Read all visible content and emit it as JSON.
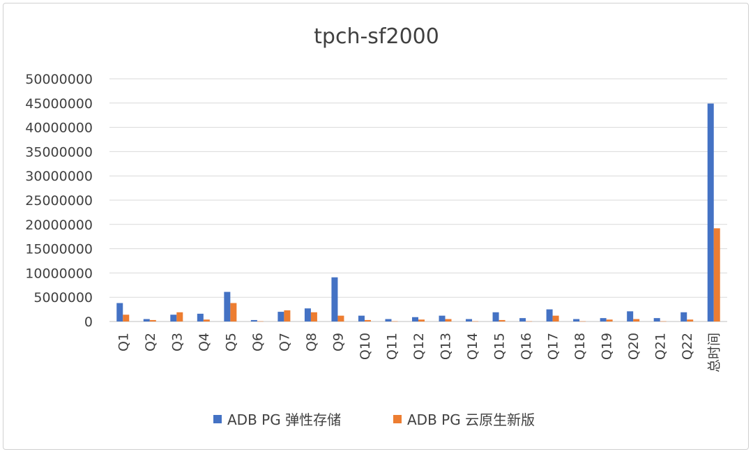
{
  "chart_data": {
    "type": "bar",
    "title": "tpch-sf2000",
    "xlabel": "",
    "ylabel": "",
    "ylim": [
      0,
      50000000
    ],
    "yticks": [
      0,
      5000000,
      10000000,
      15000000,
      20000000,
      25000000,
      30000000,
      35000000,
      40000000,
      45000000,
      50000000
    ],
    "grid": true,
    "legend_position": "bottom",
    "categories": [
      "Q1",
      "Q2",
      "Q3",
      "Q4",
      "Q5",
      "Q6",
      "Q7",
      "Q8",
      "Q9",
      "Q10",
      "Q11",
      "Q12",
      "Q13",
      "Q14",
      "Q15",
      "Q16",
      "Q17",
      "Q18",
      "Q19",
      "Q20",
      "Q21",
      "Q22",
      "总时间"
    ],
    "series": [
      {
        "name": "ADB PG 弹性存储",
        "color": "#4472C4",
        "values": [
          3800000,
          500000,
          1400000,
          1600000,
          6100000,
          300000,
          2000000,
          2700000,
          9100000,
          1200000,
          500000,
          900000,
          1200000,
          500000,
          1900000,
          700000,
          2500000,
          500000,
          700000,
          2100000,
          700000,
          1900000,
          44900000
        ]
      },
      {
        "name": "ADB PG 云原生新版",
        "color": "#ED7D31",
        "values": [
          1400000,
          300000,
          1900000,
          400000,
          3800000,
          50000,
          2300000,
          1900000,
          1200000,
          300000,
          50000,
          400000,
          500000,
          50000,
          300000,
          50000,
          1200000,
          50000,
          400000,
          500000,
          50000,
          400000,
          19200000
        ]
      }
    ]
  }
}
